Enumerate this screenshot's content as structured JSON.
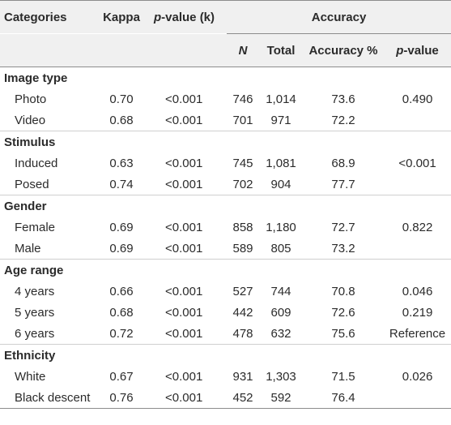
{
  "headers": {
    "categories": "Categories",
    "kappa": "Kappa",
    "pvalue_k_italic": "p",
    "pvalue_k_rest": "-value (k)",
    "accuracy": "Accuracy",
    "n": "N",
    "total": "Total",
    "accuracy_pct": "Accuracy %",
    "pvalue_italic": "p",
    "pvalue_rest": "-value"
  },
  "sections": [
    {
      "title": "Image type",
      "rows": [
        {
          "label": "Photo",
          "kappa": "0.70",
          "pk": "<0.001",
          "n": "746",
          "total": "1,014",
          "acc": "73.6",
          "p": "0.490"
        },
        {
          "label": "Video",
          "kappa": "0.68",
          "pk": "<0.001",
          "n": "701",
          "total": "971",
          "acc": "72.2",
          "p": ""
        }
      ]
    },
    {
      "title": "Stimulus",
      "rows": [
        {
          "label": "Induced",
          "kappa": "0.63",
          "pk": "<0.001",
          "n": "745",
          "total": "1,081",
          "acc": "68.9",
          "p": "<0.001"
        },
        {
          "label": "Posed",
          "kappa": "0.74",
          "pk": "<0.001",
          "n": "702",
          "total": "904",
          "acc": "77.7",
          "p": ""
        }
      ]
    },
    {
      "title": "Gender",
      "rows": [
        {
          "label": "Female",
          "kappa": "0.69",
          "pk": "<0.001",
          "n": "858",
          "total": "1,180",
          "acc": "72.7",
          "p": "0.822"
        },
        {
          "label": "Male",
          "kappa": "0.69",
          "pk": "<0.001",
          "n": "589",
          "total": "805",
          "acc": "73.2",
          "p": ""
        }
      ]
    },
    {
      "title": "Age range",
      "rows": [
        {
          "label": "4 years",
          "kappa": "0.66",
          "pk": "<0.001",
          "n": "527",
          "total": "744",
          "acc": "70.8",
          "p": "0.046"
        },
        {
          "label": "5 years",
          "kappa": "0.68",
          "pk": "<0.001",
          "n": "442",
          "total": "609",
          "acc": "72.6",
          "p": "0.219"
        },
        {
          "label": "6 years",
          "kappa": "0.72",
          "pk": "<0.001",
          "n": "478",
          "total": "632",
          "acc": "75.6",
          "p": "Reference"
        }
      ]
    },
    {
      "title": "Ethnicity",
      "rows": [
        {
          "label": "White",
          "kappa": "0.67",
          "pk": "<0.001",
          "n": "931",
          "total": "1,303",
          "acc": "71.5",
          "p": "0.026"
        },
        {
          "label": "Black descent",
          "kappa": "0.76",
          "pk": "<0.001",
          "n": "452",
          "total": "592",
          "acc": "76.4",
          "p": ""
        }
      ]
    }
  ]
}
